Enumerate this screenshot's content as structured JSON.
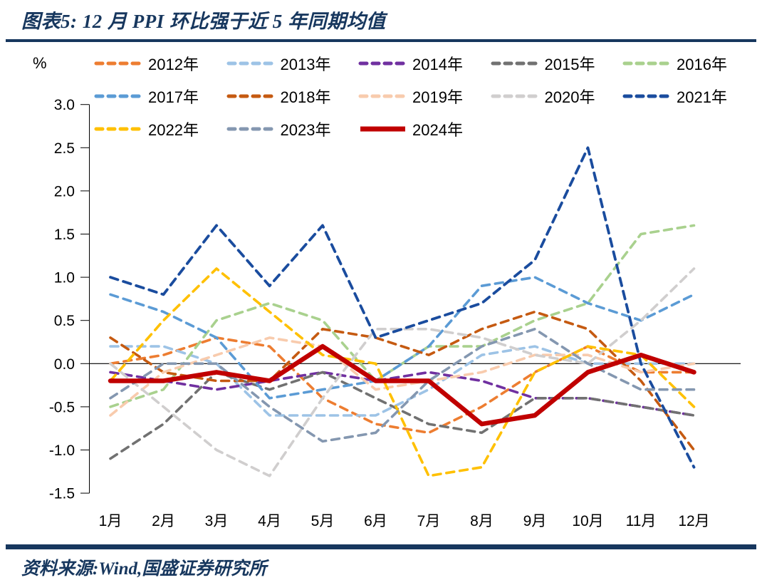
{
  "header": {
    "title": "图表5: 12 月 PPI 环比强于近 5 年同期均值",
    "accent_color": "#17375E"
  },
  "footer": {
    "source": "资料来源:Wind,国盛证券研究所"
  },
  "chart_data": {
    "type": "line",
    "title": "图表5: 12 月 PPI 环比强于近 5 年同期均值",
    "unit": "%",
    "categories": [
      "1月",
      "2月",
      "3月",
      "4月",
      "5月",
      "6月",
      "7月",
      "8月",
      "9月",
      "10月",
      "11月",
      "12月"
    ],
    "ylim": [
      -1.5,
      3.0
    ],
    "ytick_step": 0.5,
    "grid": false,
    "legend_position": "top",
    "zero_line": true,
    "axis_color": "#000000",
    "series": [
      {
        "name": "2012年",
        "color": "#ED7D31",
        "dashed": true,
        "width": 3.6,
        "values": [
          0.0,
          0.1,
          0.3,
          0.2,
          -0.4,
          -0.7,
          -0.8,
          -0.5,
          -0.1,
          0.2,
          -0.1,
          -0.1
        ]
      },
      {
        "name": "2013年",
        "color": "#9DC3E6",
        "dashed": true,
        "width": 3.6,
        "values": [
          0.2,
          0.2,
          0.0,
          -0.6,
          -0.6,
          -0.6,
          -0.3,
          0.1,
          0.2,
          0.0,
          0.0,
          0.0
        ]
      },
      {
        "name": "2014年",
        "color": "#7030A0",
        "dashed": true,
        "width": 3.6,
        "values": [
          -0.1,
          -0.2,
          -0.3,
          -0.2,
          -0.1,
          -0.2,
          -0.1,
          -0.2,
          -0.4,
          -0.4,
          -0.5,
          -0.6
        ]
      },
      {
        "name": "2015年",
        "color": "#717171",
        "dashed": true,
        "width": 3.6,
        "values": [
          -1.1,
          -0.7,
          -0.1,
          -0.3,
          -0.1,
          -0.4,
          -0.7,
          -0.8,
          -0.4,
          -0.4,
          -0.5,
          -0.6
        ]
      },
      {
        "name": "2016年",
        "color": "#A9D18E",
        "dashed": true,
        "width": 3.6,
        "values": [
          -0.5,
          -0.3,
          0.5,
          0.7,
          0.5,
          -0.2,
          0.2,
          0.2,
          0.5,
          0.7,
          1.5,
          1.6
        ]
      },
      {
        "name": "2017年",
        "color": "#5B9BD5",
        "dashed": true,
        "width": 3.6,
        "values": [
          0.8,
          0.6,
          0.3,
          -0.4,
          -0.3,
          -0.2,
          0.2,
          0.9,
          1.0,
          0.7,
          0.5,
          0.8
        ]
      },
      {
        "name": "2018年",
        "color": "#C55A11",
        "dashed": true,
        "width": 3.6,
        "values": [
          0.3,
          -0.1,
          -0.2,
          -0.2,
          0.4,
          0.3,
          0.1,
          0.4,
          0.6,
          0.4,
          -0.2,
          -1.0
        ]
      },
      {
        "name": "2019年",
        "color": "#F8CBAD",
        "dashed": true,
        "width": 3.6,
        "values": [
          -0.6,
          -0.1,
          0.1,
          0.3,
          0.2,
          -0.3,
          -0.2,
          -0.1,
          0.1,
          0.1,
          -0.1,
          0.0
        ]
      },
      {
        "name": "2020年",
        "color": "#D0CECE",
        "dashed": true,
        "width": 3.6,
        "values": [
          0.0,
          -0.5,
          -1.0,
          -1.3,
          -0.4,
          0.4,
          0.4,
          0.3,
          0.1,
          0.0,
          0.5,
          1.1
        ]
      },
      {
        "name": "2021年",
        "color": "#1A4C9E",
        "dashed": true,
        "width": 3.8,
        "values": [
          1.0,
          0.8,
          1.6,
          0.9,
          1.6,
          0.3,
          0.5,
          0.7,
          1.2,
          2.5,
          0.0,
          -1.2
        ]
      },
      {
        "name": "2022年",
        "color": "#FFC000",
        "dashed": true,
        "width": 3.6,
        "values": [
          -0.2,
          0.5,
          1.1,
          0.6,
          0.1,
          0.0,
          -1.3,
          -1.2,
          -0.1,
          0.2,
          0.1,
          -0.5
        ]
      },
      {
        "name": "2023年",
        "color": "#8497B0",
        "dashed": true,
        "width": 3.6,
        "values": [
          -0.4,
          0.0,
          0.0,
          -0.5,
          -0.9,
          -0.8,
          -0.2,
          0.2,
          0.4,
          0.0,
          -0.3,
          -0.3
        ]
      },
      {
        "name": "2024年",
        "color": "#C00000",
        "dashed": false,
        "width": 6.5,
        "values": [
          -0.2,
          -0.2,
          -0.1,
          -0.2,
          0.2,
          -0.2,
          -0.2,
          -0.7,
          -0.6,
          -0.1,
          0.1,
          -0.1
        ]
      }
    ]
  }
}
